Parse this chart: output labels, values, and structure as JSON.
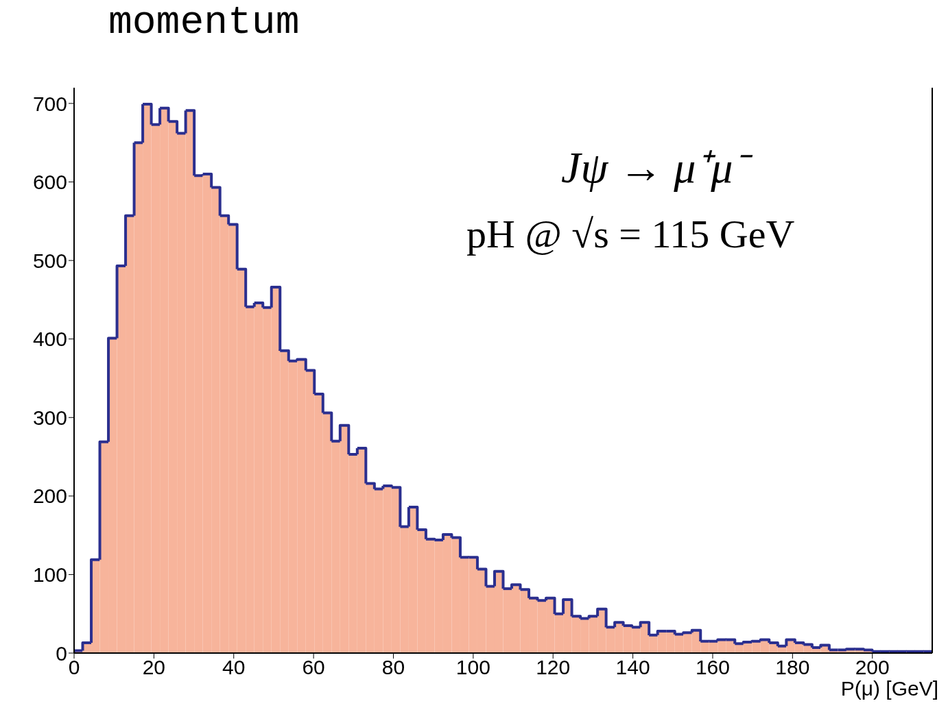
{
  "chart_data": {
    "type": "histogram",
    "title": "momentum",
    "xlabel": "P(μ) [GeV]",
    "annotations": [
      "Jψ → μ⁺μ⁻",
      "pH @ √s = 115 GeV"
    ],
    "color": "#f7b49b",
    "bins": [
      0,
      2.15,
      4.3,
      6.45,
      8.6,
      10.75,
      12.9,
      15.05,
      17.2,
      19.35,
      21.5,
      23.65,
      25.8,
      27.95,
      30.1,
      32.25,
      34.4,
      36.55,
      38.7,
      40.85,
      43,
      45.15,
      47.3,
      49.45,
      51.6,
      53.75,
      55.9,
      58.05,
      60.2,
      62.35,
      64.5,
      66.65,
      68.8,
      70.95,
      73.1,
      75.25,
      77.4,
      79.55,
      81.7,
      83.85,
      86,
      88.15,
      90.3,
      92.45,
      94.6,
      96.75,
      98.9,
      101.05,
      103.2,
      105.35,
      107.5,
      109.65,
      111.8,
      113.95,
      116.1,
      118.25,
      120.4,
      122.55,
      124.7,
      126.85,
      129,
      131.15,
      133.3,
      135.45,
      137.6,
      139.75,
      141.9,
      144.05,
      146.2,
      148.35,
      150.5,
      152.65,
      154.8,
      156.95,
      159.1,
      161.25,
      163.4,
      165.55,
      167.7,
      169.85,
      172,
      174.15,
      176.3,
      178.45,
      180.6,
      182.75,
      184.9,
      187.05,
      189.2,
      191.35,
      193.5,
      195.65,
      197.8,
      199.95,
      202.1,
      204.25,
      206.4,
      208.55,
      210.7,
      212.85,
      215
    ],
    "values": [
      3,
      13,
      119,
      269,
      401,
      493,
      557,
      650,
      699,
      673,
      694,
      677,
      662,
      691,
      608,
      610,
      593,
      557,
      546,
      489,
      441,
      446,
      440,
      466,
      385,
      372,
      374,
      360,
      330,
      306,
      270,
      290,
      253,
      261,
      216,
      209,
      213,
      211,
      161,
      186,
      157,
      145,
      144,
      151,
      147,
      122,
      122,
      107,
      85,
      104,
      82,
      87,
      81,
      70,
      67,
      70,
      50,
      68,
      47,
      44,
      47,
      56,
      33,
      39,
      35,
      33,
      39,
      23,
      28,
      28,
      24,
      26,
      29,
      15,
      15,
      17,
      17,
      12,
      14,
      15,
      17,
      13,
      9,
      17,
      13,
      11,
      7,
      10,
      4,
      4,
      5,
      5,
      4,
      2,
      2,
      2,
      2,
      2,
      2,
      2
    ],
    "xlim": [
      0,
      215
    ],
    "xticks": [
      0,
      20,
      40,
      60,
      80,
      100,
      120,
      140,
      160,
      180,
      200
    ],
    "ylim": [
      0,
      720
    ],
    "yticks": [
      0,
      100,
      200,
      300,
      400,
      500,
      600,
      700
    ]
  }
}
